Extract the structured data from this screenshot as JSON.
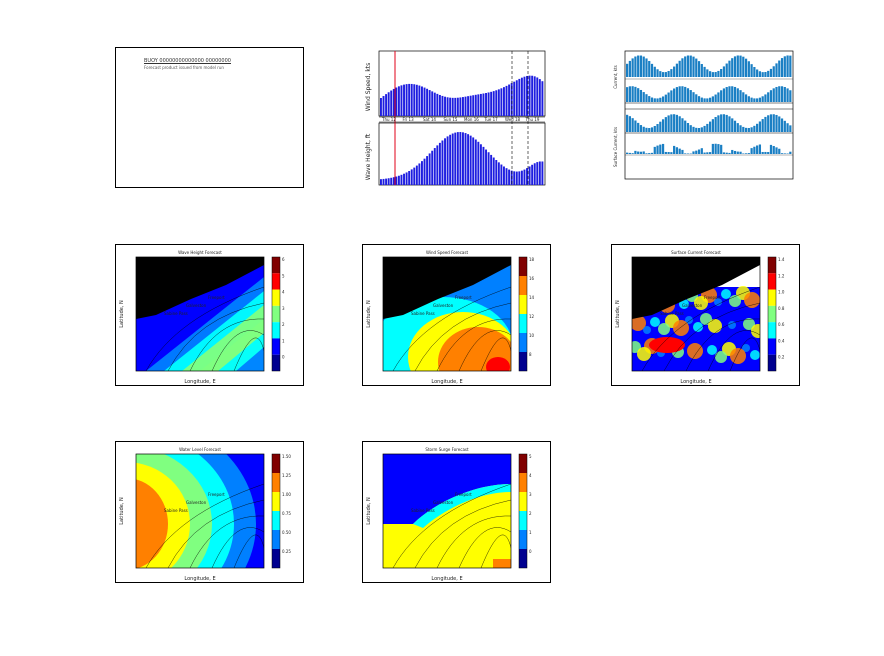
{
  "page": {
    "grid": "3x3 thumbnail contact sheet",
    "background_color": "#ffffff"
  },
  "panel_text": {
    "line1": "BUOY 00000000000000 00000000",
    "line2": "Forecast product issued from model run"
  },
  "wind_wave": {
    "ylabel_top": "Wind Speed, kts",
    "ylabel_bottom": "Wave Height, ft",
    "top_ticks": [
      "20",
      "15",
      "10",
      "5"
    ],
    "bottom_ticks": [
      "10",
      "5"
    ],
    "day_labels": [
      "Thu 12",
      "Fri 13",
      "Sat 14",
      "Sun 15",
      "Mon 16",
      "Tue 17",
      "Wed 18",
      "Thu 19"
    ],
    "marker_color": "#e0001a",
    "bar_color": "#1e1ee0"
  },
  "multi_bars": {
    "ylabel_a": "Current, kts",
    "ylabel_b": "Surface Current, kts",
    "bar_color": "#1a7fc4"
  },
  "maps": {
    "xlabel": "Longitude, E",
    "ylabel": "Latitude, N",
    "coastal_labels": [
      "Sabine Pass",
      "Galveston",
      "Freeport"
    ],
    "colorbar_a": [
      "6",
      "5",
      "4",
      "3",
      "2",
      "1",
      "0"
    ],
    "colorbar_b": [
      "18",
      "16",
      "14",
      "12",
      "10",
      "8"
    ],
    "colorbar_c": [
      "1.4",
      "1.2",
      "1.0",
      "0.8",
      "0.6",
      "0.4",
      "0.2"
    ],
    "colorbar_d": [
      "1.50",
      "1.25",
      "1.00",
      "0.75",
      "0.50",
      "0.25"
    ],
    "colorbar_e": [
      "5",
      "4",
      "3",
      "2",
      "1",
      "0"
    ],
    "map_titles": [
      "Wave Height Forecast",
      "Wind Speed Forecast",
      "Surface Current Forecast",
      "Water Level Forecast",
      "Storm Surge Forecast"
    ]
  },
  "colors": {
    "jet": [
      "#00008f",
      "#0000ff",
      "#0080ff",
      "#00ffff",
      "#80ff80",
      "#ffff00",
      "#ff8000",
      "#ff0000",
      "#800000"
    ],
    "land": "#000000"
  }
}
